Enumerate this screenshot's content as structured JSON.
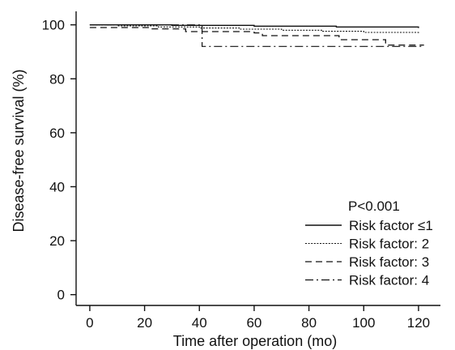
{
  "chart_data": {
    "type": "line",
    "step": true,
    "xlabel": "Time after operation (mo)",
    "ylabel": "Disease-free survival (%)",
    "xlim": [
      -5,
      128
    ],
    "ylim": [
      -4,
      105
    ],
    "x_ticks": [
      0,
      20,
      40,
      60,
      80,
      100,
      120
    ],
    "y_ticks": [
      0,
      20,
      40,
      60,
      80,
      100
    ],
    "grid": false,
    "legend_position": "bottom-right",
    "annotation": "P<0.001",
    "series": [
      {
        "name": "Risk factor ≤1",
        "line_style": "solid",
        "points": [
          [
            0,
            100
          ],
          [
            30,
            99.8
          ],
          [
            60,
            99.5
          ],
          [
            90,
            99.2
          ],
          [
            120,
            98.8
          ]
        ]
      },
      {
        "name": "Risk factor: 2",
        "line_style": "dotted",
        "points": [
          [
            0,
            100
          ],
          [
            10,
            99.6
          ],
          [
            25,
            99.2
          ],
          [
            40,
            98.8
          ],
          [
            55,
            98.4
          ],
          [
            70,
            98.0
          ],
          [
            85,
            97.6
          ],
          [
            100,
            97.2
          ],
          [
            120,
            96.8
          ]
        ]
      },
      {
        "name": "Risk factor: 3",
        "line_style": "dashed",
        "points": [
          [
            0,
            99
          ],
          [
            15,
            99
          ],
          [
            22,
            98.5
          ],
          [
            35,
            97.5
          ],
          [
            41,
            97.5
          ],
          [
            41,
            97.5
          ],
          [
            60,
            97
          ],
          [
            63,
            96
          ],
          [
            75,
            96
          ],
          [
            91,
            96
          ],
          [
            91,
            94.5
          ],
          [
            108,
            94.5
          ],
          [
            108,
            92.5
          ],
          [
            122,
            92.5
          ]
        ]
      },
      {
        "name": "Risk factor: 4",
        "line_style": "dashdot",
        "points": [
          [
            0,
            100
          ],
          [
            41,
            100
          ],
          [
            41,
            92
          ],
          [
            122,
            92
          ]
        ]
      }
    ]
  }
}
